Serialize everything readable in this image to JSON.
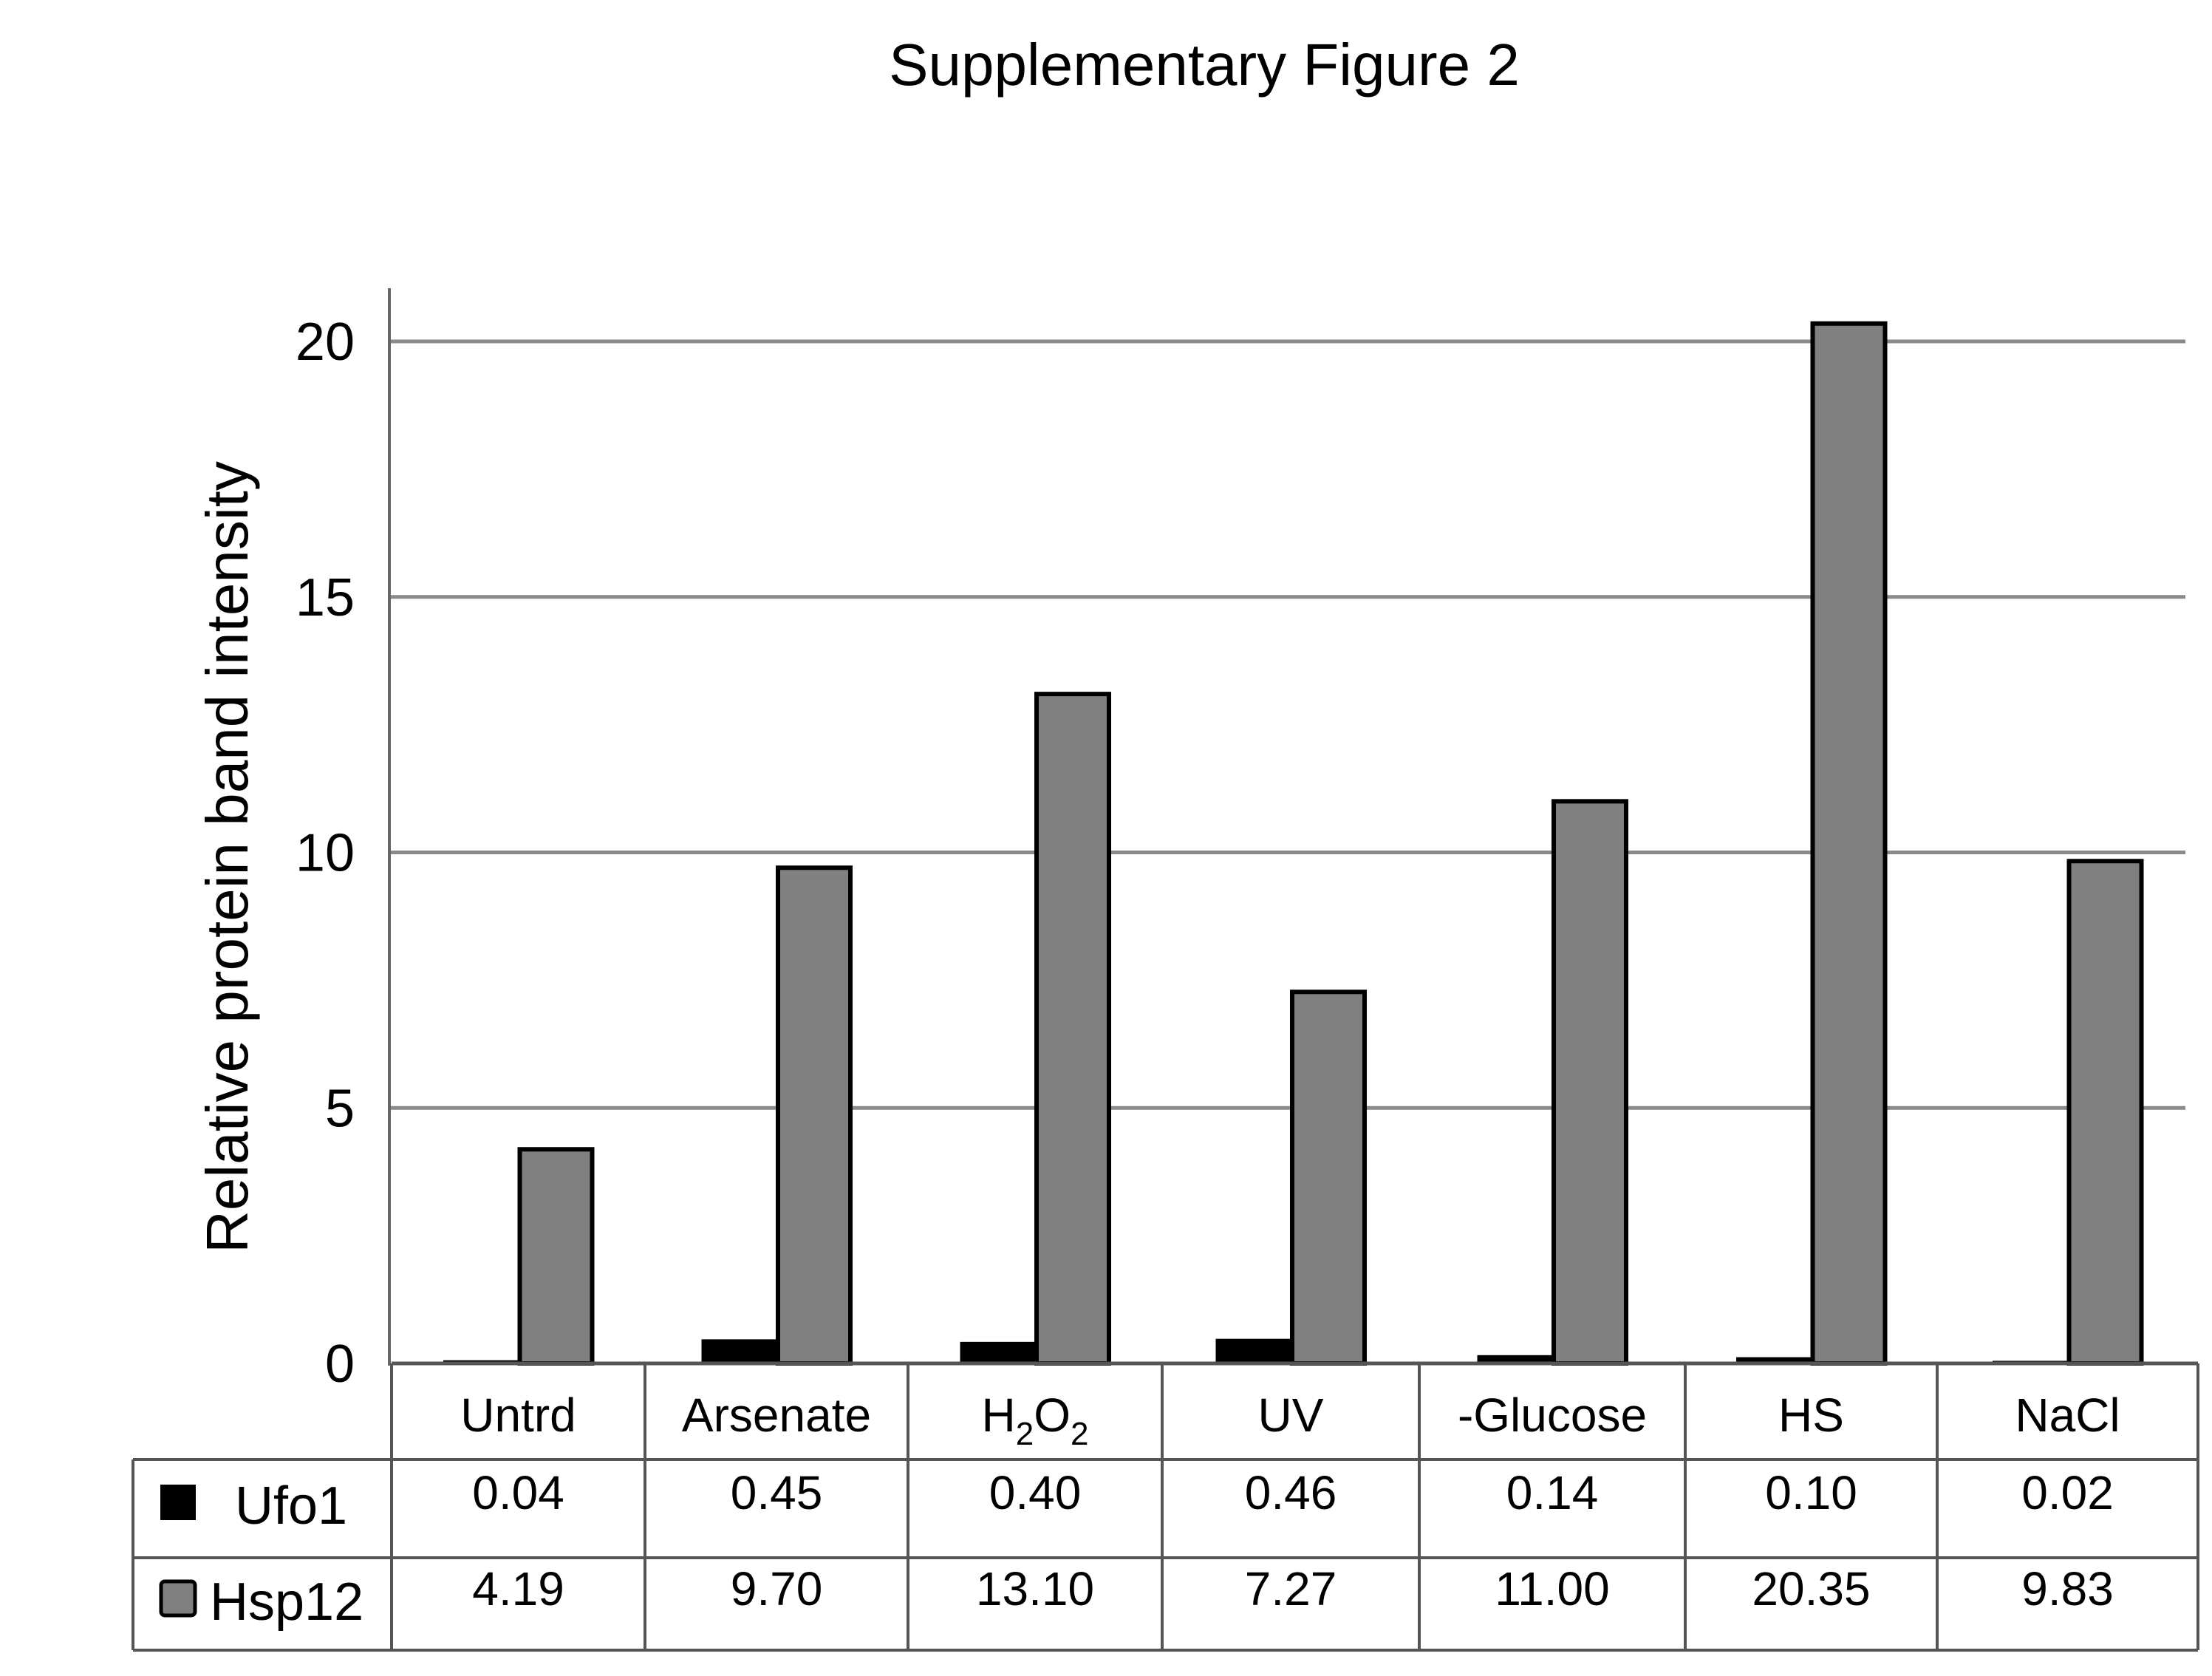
{
  "chart_data": {
    "type": "bar",
    "title": "Supplementary Figure 2",
    "xlabel": "",
    "ylabel": "Relative protein band intensity",
    "ylim": [
      0,
      21.5
    ],
    "yticks": [
      "0",
      "5",
      "10",
      "15",
      "20"
    ],
    "ytick_values": [
      0,
      5,
      10,
      15,
      20
    ],
    "grid": true,
    "legend": "data-table",
    "categories": [
      "Untrd",
      "Arsenate",
      "H2O2",
      "UV",
      "-Glucose",
      "HS",
      "NaCl"
    ],
    "category_labels": [
      {
        "main": "Untrd",
        "sub": ""
      },
      {
        "main": "Arsenate",
        "sub": ""
      },
      {
        "main": "H",
        "sub": "2",
        "main2": "O",
        "sub2": "2"
      },
      {
        "main": "UV",
        "sub": ""
      },
      {
        "main": "-Glucose",
        "sub": ""
      },
      {
        "main": "HS",
        "sub": ""
      },
      {
        "main": "NaCl",
        "sub": ""
      }
    ],
    "series": [
      {
        "name": "Ufo1",
        "color": "#000000",
        "values": [
          0.04,
          0.45,
          0.4,
          0.46,
          0.14,
          0.1,
          0.02
        ],
        "labels": [
          "0.04",
          "0.45",
          "0.40",
          "0.46",
          "0.14",
          "0.10",
          "0.02"
        ]
      },
      {
        "name": "Hsp12",
        "color": "#808080",
        "values": [
          4.19,
          9.7,
          13.1,
          7.27,
          11.0,
          20.35,
          9.83
        ],
        "labels": [
          "4.19",
          "9.70",
          "13.10",
          "7.27",
          "11.00",
          "20.35",
          "9.83"
        ]
      }
    ]
  }
}
